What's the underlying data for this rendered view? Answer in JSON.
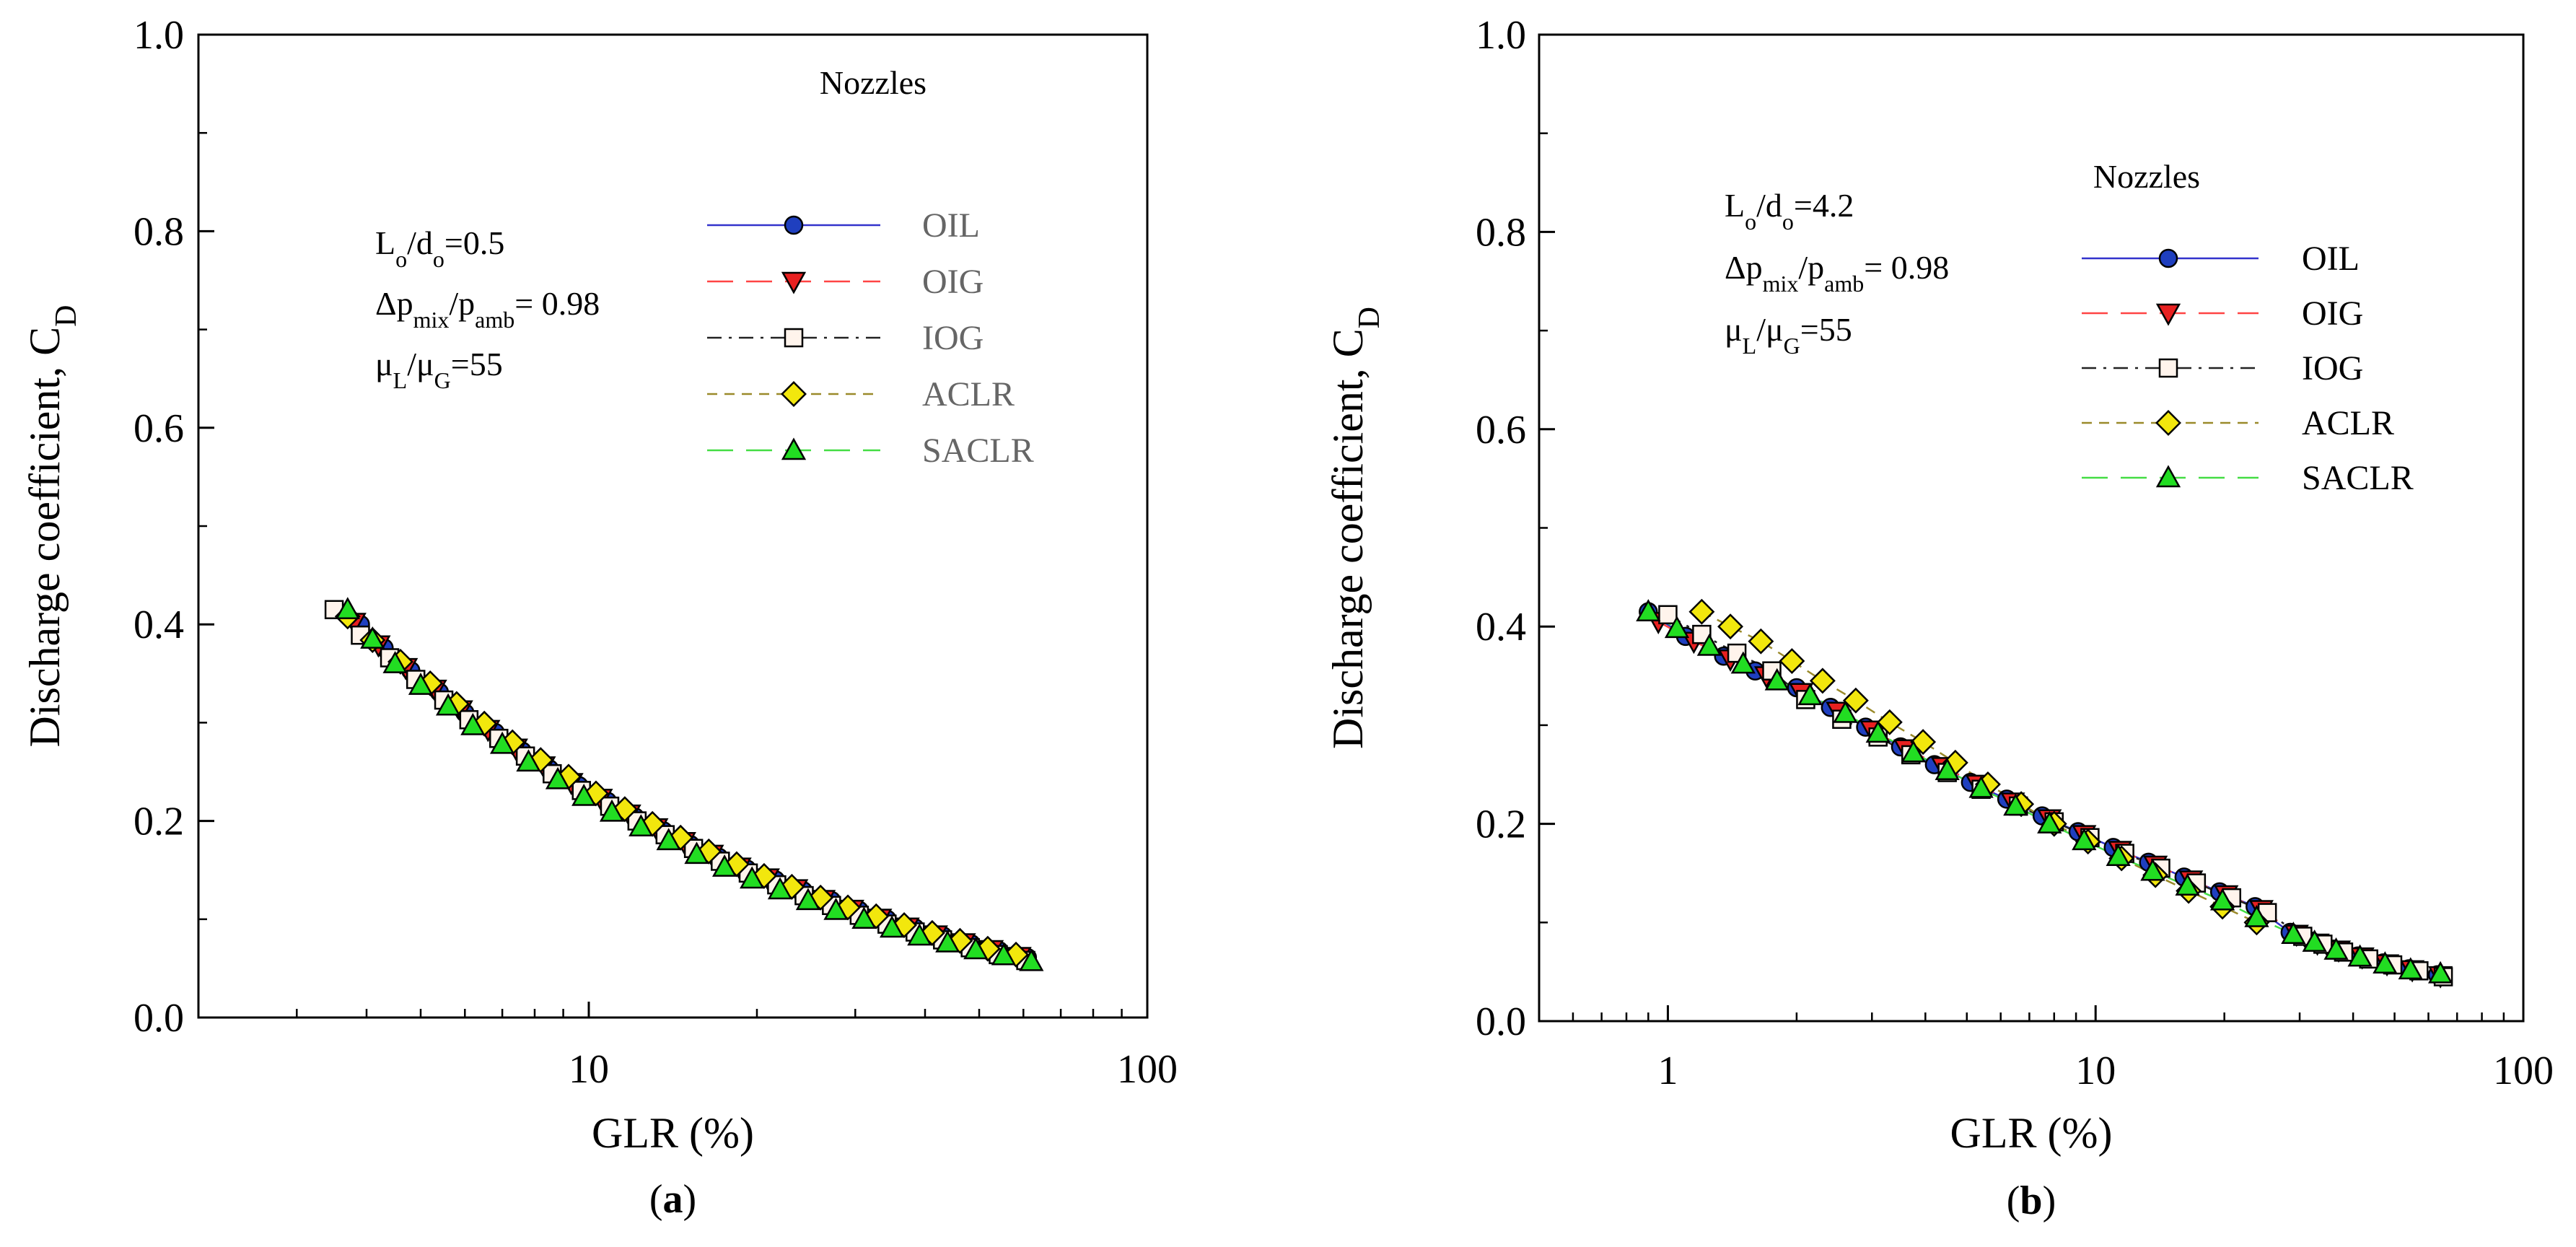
{
  "chart_data": [
    {
      "id": "a",
      "type": "scatter",
      "caption": {
        "open": "(",
        "letter": "a",
        "close": ")"
      },
      "xlabel": "GLR (%)",
      "ylabel": "Discharge coefficient, C",
      "ylabel_sub": "D",
      "xscale": "log",
      "xlim": [
        2,
        100
      ],
      "ylim": [
        0,
        1.0
      ],
      "x_ticks": [
        10,
        100
      ],
      "x_ticklabels": [
        "10",
        "100"
      ],
      "y_ticks": [
        0,
        0.2,
        0.4,
        0.6,
        0.8,
        1.0
      ],
      "y_ticklabels": [
        "0.0",
        "0.2",
        "0.4",
        "0.6",
        "0.8",
        "1.0"
      ],
      "legend_title": "Nozzles",
      "legend_label_color": "#666666",
      "annotation": [
        [
          {
            "t": "L",
            "s": "n"
          },
          {
            "t": "o",
            "s": "sub"
          },
          {
            "t": "/d",
            "s": "n"
          },
          {
            "t": "o",
            "s": "sub"
          },
          {
            "t": "=0.5",
            "s": "n"
          }
        ],
        [
          {
            "t": "Δp",
            "s": "n"
          },
          {
            "t": "mix",
            "s": "sub"
          },
          {
            "t": "/p",
            "s": "n"
          },
          {
            "t": "amb",
            "s": "sub"
          },
          {
            "t": "= 0.98",
            "s": "n"
          }
        ],
        [
          {
            "t": "μ",
            "s": "n"
          },
          {
            "t": "L",
            "s": "sub"
          },
          {
            "t": "/μ",
            "s": "n"
          },
          {
            "t": "G",
            "s": "sub"
          },
          {
            "t": "=55",
            "s": "n"
          }
        ]
      ],
      "series": [
        {
          "name": "OIL",
          "line_color": "#3333cc",
          "dash": "solid",
          "marker": "circle",
          "marker_color": "#1f3fbf",
          "x": [
            3.9,
            4.3,
            4.8,
            5.4,
            6.0,
            6.8,
            7.6,
            8.5,
            9.6,
            10.8,
            12.1,
            13.6,
            15.2,
            17.1,
            19.2,
            21.6,
            24.2,
            27.2,
            30.5,
            34.2,
            38.4,
            43.1,
            48.4,
            54.3,
            61.0
          ],
          "y": [
            0.4,
            0.376,
            0.353,
            0.331,
            0.31,
            0.29,
            0.271,
            0.253,
            0.236,
            0.22,
            0.204,
            0.19,
            0.176,
            0.163,
            0.151,
            0.14,
            0.129,
            0.119,
            0.109,
            0.1,
            0.091,
            0.083,
            0.075,
            0.068,
            0.061
          ]
        },
        {
          "name": "OIG",
          "line_color": "#ff4444",
          "dash": "long",
          "marker": "triangle-down",
          "marker_color": "#e82020",
          "x": [
            3.8,
            4.2,
            4.7,
            5.3,
            5.9,
            6.6,
            7.4,
            8.3,
            9.3,
            10.5,
            11.8,
            13.2,
            14.8,
            16.6,
            18.6,
            20.9,
            23.5,
            26.3,
            29.6,
            33.2,
            37.2,
            41.8,
            46.9,
            52.6,
            59.0
          ],
          "y": [
            0.402,
            0.379,
            0.356,
            0.334,
            0.313,
            0.293,
            0.274,
            0.256,
            0.239,
            0.223,
            0.207,
            0.193,
            0.179,
            0.166,
            0.153,
            0.142,
            0.131,
            0.12,
            0.11,
            0.101,
            0.092,
            0.084,
            0.076,
            0.069,
            0.062
          ]
        },
        {
          "name": "IOG",
          "line_color": "#222222",
          "dash": "dashdot",
          "marker": "square",
          "marker_color": "#fff4ec",
          "x": [
            3.5,
            3.9,
            4.4,
            4.9,
            5.5,
            6.1,
            6.9,
            7.7,
            8.6,
            9.7,
            10.9,
            12.2,
            13.7,
            15.4,
            17.2,
            19.3,
            21.7,
            24.3,
            27.2,
            30.5,
            34.2,
            38.4,
            43.0,
            48.2,
            54.1,
            60.6
          ],
          "y": [
            0.415,
            0.389,
            0.366,
            0.344,
            0.323,
            0.303,
            0.284,
            0.266,
            0.248,
            0.231,
            0.215,
            0.2,
            0.186,
            0.172,
            0.159,
            0.147,
            0.135,
            0.124,
            0.114,
            0.104,
            0.095,
            0.087,
            0.079,
            0.071,
            0.064,
            0.058
          ]
        },
        {
          "name": "ACLR",
          "line_color": "#9a8a2a",
          "dash": "short",
          "marker": "diamond",
          "marker_color": "#f2e70d",
          "x": [
            3.7,
            4.1,
            4.6,
            5.2,
            5.8,
            6.5,
            7.3,
            8.2,
            9.2,
            10.3,
            11.6,
            13.0,
            14.6,
            16.4,
            18.4,
            20.6,
            23.1,
            26.0,
            29.1,
            32.7,
            36.7,
            41.2,
            46.2,
            51.8,
            58.2
          ],
          "y": [
            0.408,
            0.384,
            0.362,
            0.34,
            0.319,
            0.299,
            0.28,
            0.262,
            0.245,
            0.228,
            0.212,
            0.197,
            0.183,
            0.169,
            0.156,
            0.144,
            0.133,
            0.122,
            0.112,
            0.103,
            0.094,
            0.086,
            0.078,
            0.07,
            0.064
          ]
        },
        {
          "name": "SACLR",
          "line_color": "#44dd44",
          "dash": "long",
          "marker": "triangle-up",
          "marker_color": "#22dd22",
          "x": [
            3.7,
            4.1,
            4.5,
            5.0,
            5.6,
            6.2,
            7.0,
            7.8,
            8.8,
            9.8,
            11.0,
            12.4,
            13.9,
            15.6,
            17.5,
            19.6,
            22.0,
            24.7,
            27.7,
            31.1,
            34.9,
            39.1,
            43.9,
            49.3,
            55.3,
            62.0
          ],
          "y": [
            0.415,
            0.385,
            0.36,
            0.338,
            0.317,
            0.297,
            0.278,
            0.26,
            0.242,
            0.225,
            0.209,
            0.194,
            0.18,
            0.166,
            0.153,
            0.141,
            0.13,
            0.119,
            0.109,
            0.1,
            0.091,
            0.083,
            0.076,
            0.069,
            0.063,
            0.057
          ]
        }
      ]
    },
    {
      "id": "b",
      "type": "scatter",
      "caption": {
        "open": "(",
        "letter": "b",
        "close": ")"
      },
      "xlabel": "GLR (%)",
      "ylabel": "Discharge coefficient, C",
      "ylabel_sub": "D",
      "xscale": "log",
      "xlim": [
        0.5,
        100
      ],
      "ylim": [
        0,
        1.0
      ],
      "x_ticks": [
        1,
        10,
        100
      ],
      "x_ticklabels": [
        "1",
        "10",
        "100"
      ],
      "y_ticks": [
        0,
        0.2,
        0.4,
        0.6,
        0.8,
        1.0
      ],
      "y_ticklabels": [
        "0.0",
        "0.2",
        "0.4",
        "0.6",
        "0.8",
        "1.0"
      ],
      "legend_title": "Nozzles",
      "legend_label_color": "#000000",
      "annotation": [
        [
          {
            "t": "L",
            "s": "n"
          },
          {
            "t": "o",
            "s": "sub"
          },
          {
            "t": "/d",
            "s": "n"
          },
          {
            "t": "o",
            "s": "sub"
          },
          {
            "t": "=4.2",
            "s": "n"
          }
        ],
        [
          {
            "t": "Δp",
            "s": "n"
          },
          {
            "t": "mix",
            "s": "sub"
          },
          {
            "t": "/p",
            "s": "n"
          },
          {
            "t": "amb",
            "s": "sub"
          },
          {
            "t": "= 0.98",
            "s": "n"
          }
        ],
        [
          {
            "t": "μ",
            "s": "n"
          },
          {
            "t": "L",
            "s": "sub"
          },
          {
            "t": "/μ",
            "s": "n"
          },
          {
            "t": "G",
            "s": "sub"
          },
          {
            "t": "=55",
            "s": "n"
          }
        ]
      ],
      "series": [
        {
          "name": "OIL",
          "line_color": "#3333cc",
          "dash": "solid",
          "marker": "circle",
          "marker_color": "#1f3fbf",
          "x": [
            0.9,
            1.1,
            1.35,
            1.6,
            2.0,
            2.4,
            2.9,
            3.5,
            4.2,
            5.1,
            6.2,
            7.5,
            9.1,
            11.0,
            13.3,
            16.1,
            19.5,
            23.6,
            28.5,
            32.0,
            36.0,
            41.0,
            47.0,
            54.0,
            63.0
          ],
          "y": [
            0.415,
            0.39,
            0.37,
            0.355,
            0.338,
            0.318,
            0.298,
            0.278,
            0.26,
            0.242,
            0.225,
            0.208,
            0.192,
            0.176,
            0.161,
            0.146,
            0.131,
            0.116,
            0.09,
            0.081,
            0.073,
            0.066,
            0.059,
            0.053,
            0.047
          ]
        },
        {
          "name": "OIG",
          "line_color": "#ff4444",
          "dash": "long",
          "marker": "triangle-down",
          "marker_color": "#e82020",
          "x": [
            0.95,
            1.15,
            1.4,
            1.7,
            2.05,
            2.5,
            3.0,
            3.6,
            4.4,
            5.3,
            6.4,
            7.8,
            9.4,
            11.4,
            13.8,
            16.7,
            20.2,
            24.4,
            29.5,
            33.0,
            37.0,
            42.0,
            48.0,
            55.0,
            64.0
          ],
          "y": [
            0.405,
            0.385,
            0.367,
            0.35,
            0.333,
            0.314,
            0.295,
            0.276,
            0.258,
            0.24,
            0.222,
            0.205,
            0.189,
            0.173,
            0.158,
            0.143,
            0.128,
            0.113,
            0.088,
            0.079,
            0.072,
            0.065,
            0.058,
            0.052,
            0.046
          ]
        },
        {
          "name": "IOG",
          "line_color": "#222222",
          "dash": "dashdot",
          "marker": "square",
          "marker_color": "#fff4ec",
          "x": [
            1.0,
            1.2,
            1.45,
            1.75,
            2.1,
            2.55,
            3.1,
            3.7,
            4.5,
            5.4,
            6.6,
            8.0,
            9.7,
            11.7,
            14.2,
            17.2,
            20.8,
            25.2,
            30.5,
            34.0,
            38.0,
            43.5,
            49.5,
            57.0,
            65.0
          ],
          "y": [
            0.412,
            0.392,
            0.373,
            0.355,
            0.326,
            0.306,
            0.288,
            0.27,
            0.252,
            0.235,
            0.218,
            0.202,
            0.186,
            0.17,
            0.155,
            0.14,
            0.125,
            0.11,
            0.086,
            0.078,
            0.07,
            0.063,
            0.057,
            0.051,
            0.045
          ]
        },
        {
          "name": "ACLR",
          "line_color": "#9a8a2a",
          "dash": "short",
          "marker": "diamond",
          "marker_color": "#f2e70d",
          "x": [
            1.2,
            1.4,
            1.65,
            1.95,
            2.3,
            2.75,
            3.3,
            3.95,
            4.7,
            5.6,
            6.7,
            8.0,
            9.6,
            11.5,
            13.8,
            16.5,
            19.8,
            23.8
          ],
          "y": [
            0.415,
            0.4,
            0.385,
            0.365,
            0.345,
            0.325,
            0.303,
            0.283,
            0.262,
            0.24,
            0.22,
            0.2,
            0.182,
            0.165,
            0.148,
            0.132,
            0.116,
            0.1
          ]
        },
        {
          "name": "SACLR",
          "line_color": "#44dd44",
          "dash": "long",
          "marker": "triangle-up",
          "marker_color": "#22dd22",
          "x": [
            0.9,
            1.05,
            1.25,
            1.5,
            1.8,
            2.15,
            2.6,
            3.1,
            3.75,
            4.5,
            5.4,
            6.5,
            7.8,
            9.4,
            11.3,
            13.6,
            16.4,
            19.8,
            23.8,
            29.0,
            32.5,
            36.5,
            41.5,
            47.5,
            54.5,
            64.0
          ],
          "y": [
            0.415,
            0.398,
            0.38,
            0.362,
            0.345,
            0.33,
            0.312,
            0.292,
            0.272,
            0.254,
            0.236,
            0.218,
            0.2,
            0.183,
            0.167,
            0.152,
            0.137,
            0.122,
            0.105,
            0.088,
            0.08,
            0.072,
            0.065,
            0.058,
            0.052,
            0.048
          ]
        }
      ]
    }
  ]
}
